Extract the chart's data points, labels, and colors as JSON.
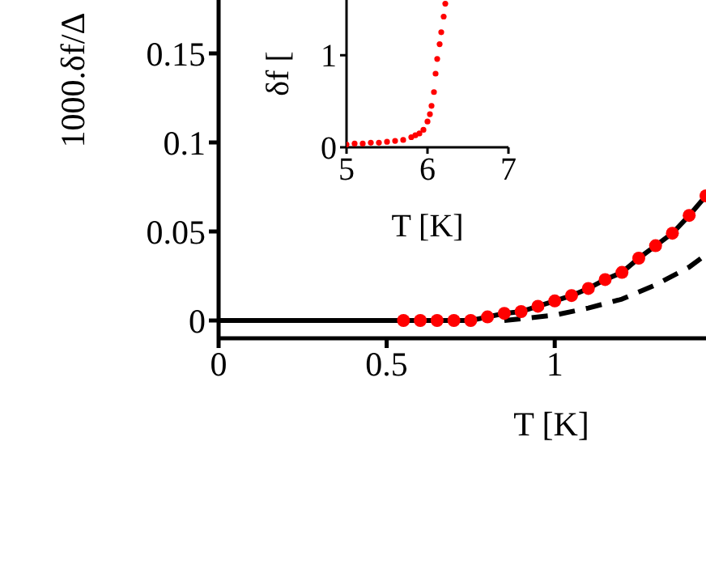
{
  "chart_data": [
    {
      "type": "line",
      "xlabel": "T [K]",
      "ylabel": "1000.δf/Δ",
      "xlim": [
        0,
        1.45
      ],
      "xticks": [
        0,
        0.5,
        1
      ],
      "ylim": [
        -0.01,
        0.18
      ],
      "yticks": [
        0,
        0.05,
        0.1,
        0.15
      ],
      "grid": false,
      "legend": false,
      "series": [
        {
          "color": "#000000",
          "line_style": "solid",
          "marker": "none",
          "x": [
            0,
            0.75,
            0.8,
            0.85,
            0.9,
            0.95,
            1,
            1.05,
            1.1,
            1.15,
            1.2,
            1.25,
            1.3,
            1.35,
            1.4,
            1.45
          ],
          "values": [
            0,
            0,
            0.002,
            0.004,
            0.005,
            0.008,
            0.011,
            0.014,
            0.018,
            0.023,
            0.027,
            0.035,
            0.042,
            0.049,
            0.059,
            0.07
          ]
        },
        {
          "color": "#000000",
          "line_style": "dashed",
          "marker": "none",
          "x": [
            0.85,
            0.9,
            1,
            1.1,
            1.2,
            1.3,
            1.4,
            1.45
          ],
          "values": [
            0,
            0.001,
            0.003,
            0.007,
            0.012,
            0.02,
            0.03,
            0.037
          ]
        },
        {
          "type": "scatter",
          "color": "#ff0000",
          "marker": "circle",
          "x": [
            0.55,
            0.6,
            0.65,
            0.7,
            0.75,
            0.8,
            0.85,
            0.9,
            0.95,
            1,
            1.05,
            1.1,
            1.15,
            1.2,
            1.25,
            1.3,
            1.35,
            1.4,
            1.45
          ],
          "values": [
            0,
            0,
            0,
            0,
            0,
            0.002,
            0.004,
            0.005,
            0.008,
            0.011,
            0.014,
            0.018,
            0.023,
            0.027,
            0.035,
            0.042,
            0.049,
            0.059,
            0.07
          ]
        }
      ]
    },
    {
      "type": "scatter",
      "xlabel": "T [K]",
      "ylabel": "δf [",
      "xlim": [
        5,
        7
      ],
      "xticks": [
        5,
        6,
        7
      ],
      "ylim": [
        0,
        1.6
      ],
      "yticks": [
        0,
        1
      ],
      "grid": false,
      "legend": false,
      "series": [
        {
          "color": "#ff0000",
          "marker": "circle",
          "x": [
            5,
            5.1,
            5.2,
            5.3,
            5.4,
            5.5,
            5.6,
            5.7,
            5.8,
            5.85,
            5.9,
            5.95,
            6,
            6.03,
            6.05,
            6.08,
            6.1,
            6.12,
            6.15,
            6.17,
            6.2,
            6.22
          ],
          "values": [
            0.03,
            0.04,
            0.04,
            0.05,
            0.05,
            0.06,
            0.07,
            0.08,
            0.11,
            0.13,
            0.15,
            0.19,
            0.28,
            0.36,
            0.45,
            0.6,
            0.8,
            0.96,
            1.12,
            1.25,
            1.42,
            1.56
          ]
        }
      ]
    }
  ]
}
